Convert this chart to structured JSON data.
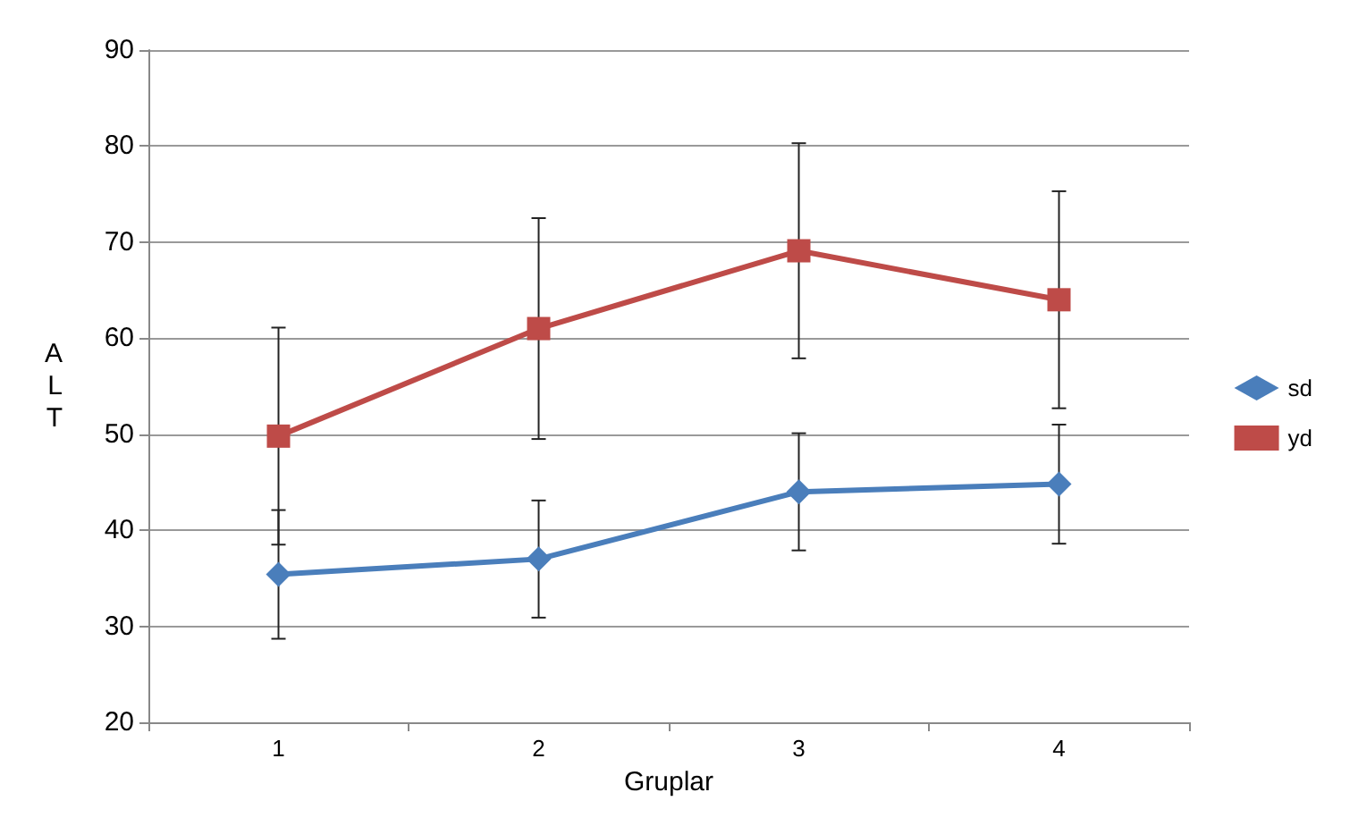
{
  "chart_data": {
    "type": "line",
    "xlabel": "Gruplar",
    "ylabel": "ALT",
    "categories": [
      "1",
      "2",
      "3",
      "4"
    ],
    "series": [
      {
        "name": "sd",
        "color": "#4a7ebb",
        "marker": "diamond",
        "values": [
          35.4,
          37.0,
          44.0,
          44.8
        ],
        "errors": [
          6.7,
          6.1,
          6.1,
          6.2
        ]
      },
      {
        "name": "yd",
        "color": "#be4b48",
        "marker": "square",
        "values": [
          49.8,
          61.0,
          69.1,
          64.0
        ],
        "errors": [
          11.3,
          11.5,
          11.2,
          11.3
        ]
      }
    ],
    "ylim": [
      20,
      90
    ],
    "yticks": [
      20,
      30,
      40,
      50,
      60,
      70,
      80,
      90
    ],
    "grid": "y",
    "legend": "right"
  }
}
